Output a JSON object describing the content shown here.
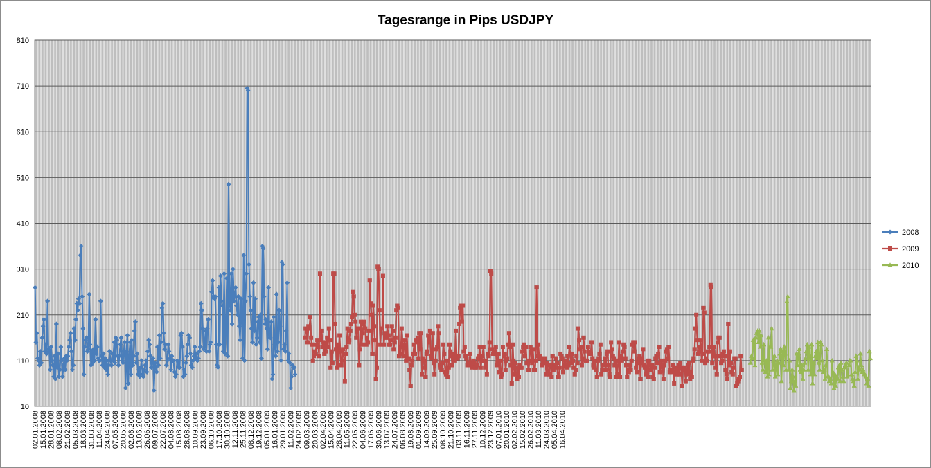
{
  "chart_data": {
    "type": "line",
    "title": "Tagesrange in Pips USDJPY",
    "xlabel": "",
    "ylabel": "",
    "ylim": [
      10,
      810
    ],
    "yticks": [
      10,
      110,
      210,
      310,
      410,
      510,
      610,
      710,
      810
    ],
    "grid": true,
    "legend_position": "right",
    "x_tick_labels": [
      "02.01.2008",
      "15.01.2008",
      "28.01.2008",
      "08.02.2008",
      "21.02.2008",
      "05.03.2008",
      "18.03.2008",
      "31.03.2008",
      "11.04.2008",
      "24.04.2008",
      "07.05.2008",
      "20.05.2008",
      "02.06.2008",
      "13.06.2008",
      "26.06.2008",
      "09.07.2008",
      "22.07.2008",
      "04.08.2008",
      "15.08.2008",
      "28.08.2008",
      "10.09.2008",
      "23.09.2008",
      "06.10.2008",
      "17.10.2008",
      "30.10.2008",
      "12.11.2008",
      "25.11.2008",
      "08.12.2008",
      "19.12.2008",
      "05.01.2009",
      "16.01.2009",
      "29.01.2009",
      "11.02.2009",
      "24.02.2009",
      "09.03.2009",
      "20.03.2009",
      "02.04.2009",
      "15.04.2009",
      "28.04.2009",
      "11.05.2009",
      "22.05.2009",
      "04.06.2009",
      "17.06.2009",
      "30.06.2009",
      "13.07.2009",
      "24.07.2009",
      "06.08.2009",
      "19.08.2009",
      "01.09.2009",
      "14.09.2009",
      "25.09.2009",
      "08.10.2009",
      "21.10.2009",
      "03.11.2009",
      "16.11.2009",
      "27.11.2009",
      "10.12.2009",
      "23.12.2009",
      "07.01.2010",
      "20.01.2010",
      "02.02.2010",
      "15.02.2010",
      "26.02.2010",
      "11.03.2010",
      "24.03.2010",
      "05.04.2010",
      "16.04.2010"
    ],
    "points_per_label": 9,
    "series": [
      {
        "name": "2008",
        "color": "#4a7ebb",
        "marker": "diamond",
        "start_index": 0,
        "values": [
          270,
          150,
          170,
          115,
          110,
          100,
          130,
          105,
          160,
          185,
          200,
          130,
          145,
          125,
          240,
          135,
          130,
          90,
          140,
          110,
          100,
          75,
          120,
          70,
          190,
          95,
          125,
          75,
          90,
          140,
          110,
          75,
          100,
          115,
          90,
          120,
          110,
          120,
          140,
          155,
          170,
          130,
          90,
          100,
          180,
          155,
          200,
          235,
          220,
          245,
          235,
          340,
          360,
          250,
          180,
          80,
          140,
          155,
          160,
          130,
          135,
          255,
          145,
          100,
          130,
          105,
          135,
          110,
          200,
          125,
          140,
          115,
          110,
          110,
          240,
          120,
          100,
          125,
          95,
          115,
          90,
          110,
          80,
          100,
          130,
          110,
          100,
          125,
          110,
          150,
          105,
          160,
          155,
          120,
          100,
          120,
          145,
          160,
          110,
          105,
          130,
          150,
          50,
          130,
          165,
          60,
          120,
          150,
          80,
          155,
          100,
          120,
          175,
          195,
          105,
          125,
          80,
          90,
          75,
          95,
          110,
          80,
          75,
          90,
          100,
          110,
          85,
          130,
          155,
          145,
          120,
          95,
          110,
          115,
          45,
          105,
          95,
          85,
          140,
          100,
          165,
          115,
          150,
          225,
          235,
          170,
          135,
          145,
          100,
          110,
          145,
          130,
          115,
          90,
          120,
          110,
          110,
          85,
          75,
          80,
          110,
          105,
          95,
          95,
          165,
          170,
          140,
          75,
          90,
          80,
          105,
          120,
          145,
          165,
          160,
          125,
          100,
          95,
          110,
          120,
          140,
          115,
          125,
          110,
          115,
          130,
          140,
          235,
          220,
          180,
          135,
          140,
          175,
          130,
          180,
          200,
          130,
          145,
          150,
          260,
          285,
          250,
          245,
          250,
          145,
          100,
          95,
          270,
          145,
          295,
          240,
          230,
          130,
          300,
          125,
          175,
          290,
          120,
          495,
          240,
          220,
          300,
          190,
          310,
          240,
          250,
          270,
          230,
          210,
          250,
          185,
          155,
          245,
          200,
          115,
          340,
          110,
          240,
          300,
          705,
          700,
          320,
          250,
          220,
          180,
          150,
          280,
          175,
          245,
          145,
          160,
          195,
          205,
          150,
          210,
          115,
          360,
          355,
          250,
          190,
          200,
          180,
          135,
          270,
          165,
          160,
          195,
          70,
          80,
          205,
          145,
          120,
          255,
          130,
          150,
          220,
          185,
          110,
          325,
          320,
          135,
          145,
          130,
          175,
          280,
          110,
          125,
          105,
          50,
          75,
          100,
          95,
          95,
          80
        ]
      },
      {
        "name": "2009",
        "color": "#be4b48",
        "marker": "square",
        "start_index": 304,
        "values": [
          160,
          180,
          175,
          150,
          185,
          180,
          205,
          160,
          145,
          110,
          120,
          130,
          125,
          145,
          155,
          140,
          120,
          300,
          155,
          175,
          140,
          150,
          125,
          150,
          130,
          160,
          140,
          180,
          155,
          95,
          130,
          105,
          300,
          300,
          190,
          135,
          95,
          145,
          100,
          165,
          130,
          100,
          110,
          135,
          125,
          65,
          125,
          140,
          180,
          150,
          155,
          175,
          190,
          205,
          260,
          250,
          210,
          195,
          160,
          180,
          180,
          100,
          135,
          195,
          145,
          170,
          190,
          195,
          180,
          145,
          160,
          150,
          175,
          285,
          235,
          210,
          125,
          230,
          185,
          155,
          70,
          95,
          315,
          310,
          220,
          145,
          180,
          180,
          295,
          145,
          170,
          160,
          160,
          185,
          165,
          145,
          145,
          155,
          185,
          175,
          135,
          150,
          160,
          220,
          230,
          225,
          120,
          140,
          125,
          180,
          145,
          120,
          155,
          145,
          110,
          165,
          115,
          115,
          90,
          55,
          100,
          110,
          125,
          145,
          125,
          155,
          150,
          160,
          115,
          170,
          135,
          170,
          80,
          115,
          110,
          95,
          75,
          125,
          130,
          165,
          150,
          175,
          120,
          115,
          170,
          105,
          80,
          110,
          135,
          140,
          185,
          170,
          100,
          95,
          90,
          105,
          145,
          125,
          85,
          80,
          110,
          75,
          95,
          145,
          130,
          120,
          100,
          115,
          125,
          110,
          175,
          115,
          115,
          120,
          190,
          225,
          230,
          195,
          230,
          130,
          140,
          120,
          115,
          100,
          105,
          100,
          125,
          105,
          95,
          100,
          110,
          105,
          95,
          95,
          100,
          115,
          120,
          140,
          95,
          110,
          120,
          140,
          110,
          95,
          110,
          80,
          125,
          120,
          150,
          305,
          300,
          135,
          125,
          130,
          125,
          140,
          100,
          105,
          125,
          85,
          110,
          75,
          80,
          140,
          120,
          125,
          90,
          110,
          115,
          145,
          170,
          140,
          100,
          60,
          145,
          110,
          80,
          105,
          80,
          70,
          95,
          75,
          100,
          95,
          95,
          130,
          140,
          145,
          120,
          140,
          105,
          105,
          90,
          110,
          140,
          130,
          105,
          135,
          90,
          90,
          110,
          270,
          120,
          145,
          115,
          120,
          115,
          100,
          110,
          105,
          115,
          105,
          80,
          105,
          85,
          80,
          100,
          100,
          75,
          120,
          90,
          100,
          95,
          115,
          105,
          75,
          75,
          95,
          125,
          120,
          115,
          85,
          100,
          110,
          100,
          95,
          120,
          100,
          140,
          125,
          105,
          125,
          110,
          95,
          80,
          90,
          120,
          105,
          180,
          155,
          135,
          140,
          100,
          115,
          160,
          130,
          110,
          110,
          110,
          140,
          125,
          130,
          125,
          150,
          115,
          100,
          95,
          110,
          90,
          75,
          110,
          115,
          125,
          145,
          80,
          90,
          100,
          100,
          115,
          90,
          125,
          130,
          100,
          80,
          75,
          150,
          135,
          120,
          115,
          100,
          110,
          75,
          80,
          110,
          150,
          75,
          120,
          110,
          130,
          145,
          140,
          115,
          100,
          75,
          90,
          85,
          100,
          90,
          110,
          145,
          150,
          130,
          150,
          95,
          85,
          105,
          115,
          120,
          70,
          115,
          105,
          135,
          100,
          95,
          80,
          90,
          110,
          75,
          110,
          100,
          90,
          100,
          75,
          70,
          95,
          115,
          120,
          105,
          125,
          140,
          85,
          100,
          110,
          95,
          70,
          100,
          110,
          130,
          135,
          115,
          140,
          85,
          90,
          85,
          90,
          100,
          60,
          85,
          95,
          80,
          90,
          100,
          80,
          105,
          95,
          55,
          90,
          90,
          95,
          65,
          80,
          90,
          100,
          105,
          70,
          85,
          75,
          110,
          115,
          135,
          180,
          210,
          155,
          125,
          130,
          140,
          155,
          110,
          125,
          225,
          215,
          105,
          115,
          110,
          130,
          130,
          140,
          275,
          270,
          105,
          120,
          140,
          120,
          95,
          80,
          150,
          160,
          160,
          120,
          105,
          110,
          125,
          130,
          120,
          90,
          80,
          70,
          190,
          100,
          130,
          105,
          85,
          80,
          95,
          115,
          115,
          55,
          60,
          65,
          70,
          75,
          120,
          90
        ]
      },
      {
        "name": "2010",
        "color": "#98b954",
        "marker": "triangle",
        "start_index": 806,
        "values": [
          105,
          120,
          115,
          155,
          155,
          100,
          160,
          170,
          175,
          150,
          175,
          140,
          165,
          105,
          90,
          145,
          110,
          85,
          110,
          75,
          160,
          80,
          140,
          140,
          180,
          90,
          110,
          120,
          75,
          100,
          110,
          80,
          105,
          125,
          135,
          65,
          130,
          100,
          140,
          125,
          90,
          240,
          250,
          90,
          110,
          50,
          65,
          90,
          75,
          45,
          65,
          55,
          125,
          100,
          125,
          135,
          90,
          85,
          100,
          70,
          90,
          105,
          115,
          130,
          145,
          90,
          140,
          120,
          80,
          145,
          60,
          105,
          80,
          120,
          130,
          115,
          150,
          105,
          90,
          150,
          145,
          110,
          85,
          90,
          70,
          100,
          135,
          75,
          75,
          65,
          70,
          60,
          110,
          85,
          50,
          80,
          55,
          75,
          70,
          95,
          100,
          65,
          105,
          90,
          75,
          65,
          95,
          100,
          105,
          75,
          80,
          100,
          110,
          110,
          80,
          70,
          65,
          55,
          85,
          120,
          110,
          70,
          95,
          90,
          125,
          100,
          85,
          90,
          80,
          80,
          75,
          60,
          70,
          55,
          130,
          115
        ]
      }
    ]
  }
}
